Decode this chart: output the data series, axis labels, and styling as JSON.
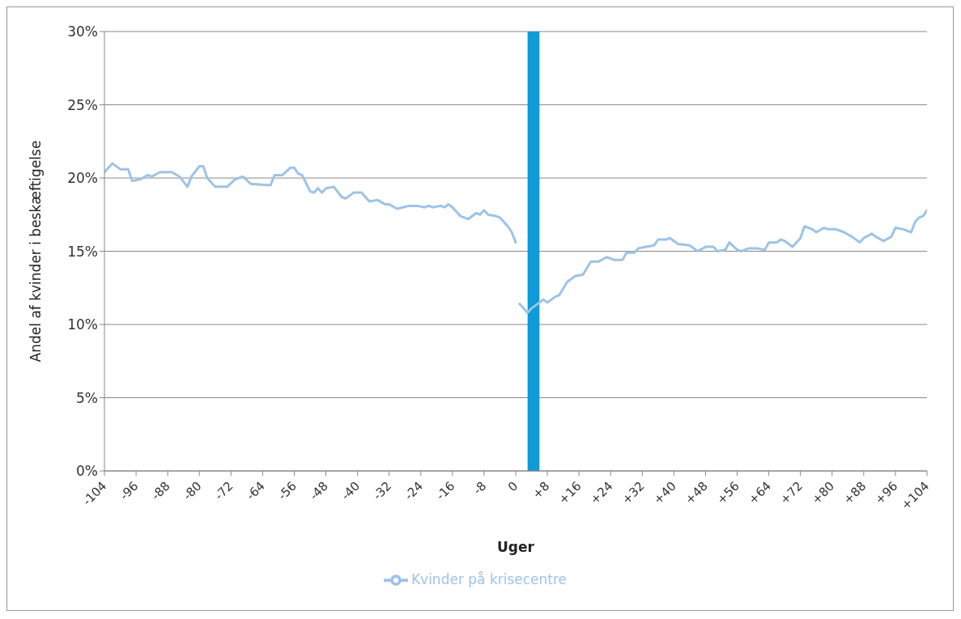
{
  "chart_data": {
    "type": "line",
    "xlabel": "Uger",
    "ylabel": "Andel af kvinder i beskæftigelse",
    "xlim": [
      -104,
      104
    ],
    "xticks": [
      {
        "value": -104,
        "label": "-104"
      },
      {
        "value": -96,
        "label": "-96"
      },
      {
        "value": -88,
        "label": "-88"
      },
      {
        "value": -80,
        "label": "-80"
      },
      {
        "value": -72,
        "label": "-72"
      },
      {
        "value": -64,
        "label": "-64"
      },
      {
        "value": -56,
        "label": "-56"
      },
      {
        "value": -48,
        "label": "-48"
      },
      {
        "value": -40,
        "label": "-40"
      },
      {
        "value": -32,
        "label": "-32"
      },
      {
        "value": -24,
        "label": "-24"
      },
      {
        "value": -16,
        "label": "-16"
      },
      {
        "value": -8,
        "label": "-8"
      },
      {
        "value": 0,
        "label": "0"
      },
      {
        "value": 8,
        "label": "+8"
      },
      {
        "value": 16,
        "label": "+16"
      },
      {
        "value": 24,
        "label": "+24"
      },
      {
        "value": 32,
        "label": "+32"
      },
      {
        "value": 40,
        "label": "+40"
      },
      {
        "value": 48,
        "label": "+48"
      },
      {
        "value": 56,
        "label": "+56"
      },
      {
        "value": 64,
        "label": "+64"
      },
      {
        "value": 72,
        "label": "+72"
      },
      {
        "value": 80,
        "label": "+80"
      },
      {
        "value": 88,
        "label": "+88"
      },
      {
        "value": 96,
        "label": "+96"
      },
      {
        "value": 104,
        "label": "+104"
      }
    ],
    "ylim": [
      0,
      30
    ],
    "yticks": [
      {
        "value": 0,
        "label": "0%"
      },
      {
        "value": 5,
        "label": "5%"
      },
      {
        "value": 10,
        "label": "10%"
      },
      {
        "value": 15,
        "label": "15%"
      },
      {
        "value": 20,
        "label": "20%"
      },
      {
        "value": 25,
        "label": "25%"
      },
      {
        "value": 30,
        "label": "30%"
      }
    ],
    "grid": "y",
    "legend": "bottom",
    "marker": "none",
    "line_style": "solid",
    "bands": [
      {
        "axis": "x",
        "from": 3,
        "to": 6,
        "color": "#0f9ad8"
      }
    ],
    "series": [
      {
        "name": "Kvinder på krisecentre",
        "color": "#9dc3e6",
        "x": [
          -104,
          -102,
          -100,
          -98,
          -97,
          -95,
          -93,
          -92,
          -90,
          -87,
          -85,
          -83,
          -82,
          -80,
          -79,
          -78,
          -76,
          -73,
          -71,
          -69,
          -67,
          -62,
          -61,
          -59,
          -57,
          -56,
          -55,
          -54,
          -52,
          -51,
          -50,
          -49,
          -48,
          -46,
          -44,
          -43,
          -41,
          -39,
          -37,
          -35,
          -33,
          -32,
          -30,
          -27,
          -25,
          -23,
          -22,
          -21,
          -19,
          -18,
          -17,
          -16,
          -14,
          -12,
          -11,
          -10,
          -9,
          -8,
          -7,
          -5,
          -4,
          -2,
          -1,
          0
        ],
        "values": [
          20.4,
          21.0,
          20.6,
          20.6,
          19.8,
          19.9,
          20.2,
          20.1,
          20.4,
          20.4,
          20.1,
          19.4,
          20.1,
          20.8,
          20.8,
          20.0,
          19.4,
          19.4,
          19.9,
          20.1,
          19.6,
          19.5,
          20.2,
          20.2,
          20.7,
          20.7,
          20.3,
          20.2,
          19.1,
          19.0,
          19.3,
          19.0,
          19.3,
          19.4,
          18.7,
          18.6,
          19.0,
          19.0,
          18.4,
          18.5,
          18.2,
          18.2,
          17.9,
          18.1,
          18.1,
          18.0,
          18.1,
          18.0,
          18.1,
          18.0,
          18.2,
          18.0,
          17.4,
          17.2,
          17.4,
          17.6,
          17.5,
          17.8,
          17.5,
          17.4,
          17.3,
          16.7,
          16.3,
          15.6
        ]
      },
      {
        "color": "#9dc3e6",
        "x": [
          1,
          3,
          4,
          6,
          7,
          8,
          10,
          11,
          13,
          15,
          17,
          19,
          21,
          23,
          25,
          27,
          28,
          30,
          31,
          33,
          35,
          36,
          38,
          39,
          41,
          44,
          46,
          48,
          50,
          51,
          53,
          54,
          56,
          57,
          59,
          61,
          63,
          64,
          66,
          67,
          68,
          70,
          72,
          73,
          75,
          76,
          78,
          79,
          81,
          83,
          85,
          87,
          88,
          90,
          91,
          93,
          95,
          96,
          98,
          100,
          101,
          102,
          103,
          104
        ],
        "values": [
          11.4,
          10.8,
          11.1,
          11.5,
          11.7,
          11.5,
          11.9,
          12.0,
          12.9,
          13.3,
          13.4,
          14.3,
          14.3,
          14.6,
          14.4,
          14.4,
          14.9,
          14.9,
          15.2,
          15.3,
          15.4,
          15.8,
          15.8,
          15.9,
          15.5,
          15.4,
          15.0,
          15.3,
          15.3,
          15.0,
          15.1,
          15.6,
          15.1,
          15.0,
          15.2,
          15.2,
          15.1,
          15.6,
          15.6,
          15.8,
          15.7,
          15.3,
          15.9,
          16.7,
          16.5,
          16.3,
          16.6,
          16.5,
          16.5,
          16.3,
          16.0,
          15.6,
          15.9,
          16.2,
          16.0,
          15.7,
          16.0,
          16.6,
          16.5,
          16.3,
          17.0,
          17.3,
          17.4,
          17.8
        ]
      }
    ]
  }
}
